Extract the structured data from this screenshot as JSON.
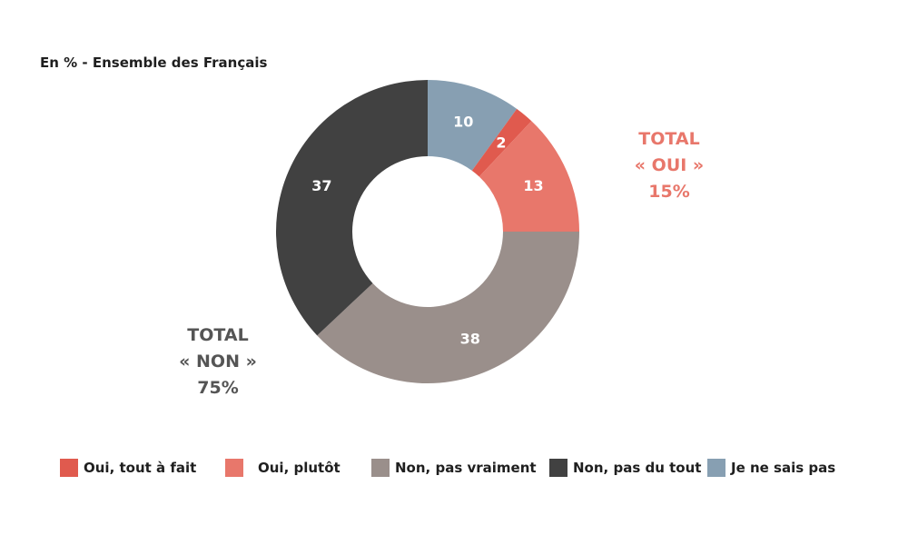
{
  "subtitle": "En % - Ensemble des Français",
  "colors": {
    "oui_tout_a_fait": "#e05a4e",
    "oui_plutot": "#e8776b",
    "non_pas_vraiment": "#9a8f8b",
    "non_pas_du_tout": "#414141",
    "je_ne_sais_pas": "#879fb2",
    "total_oui_text": "#e8776b",
    "total_non_text": "#555555"
  },
  "chart_data": {
    "type": "pie",
    "donut": true,
    "title": "En % - Ensemble des Français",
    "start": "top",
    "direction": "clockwise",
    "slices": [
      {
        "label": "Je ne sais pas",
        "value": 10,
        "color": "#879fb2"
      },
      {
        "label": "Oui, tout à fait",
        "value": 2,
        "color": "#e05a4e"
      },
      {
        "label": "Oui, plutôt",
        "value": 13,
        "color": "#e8776b"
      },
      {
        "label": "Non, pas vraiment",
        "value": 38,
        "color": "#9a8f8b"
      },
      {
        "label": "Non, pas du tout",
        "value": 37,
        "color": "#414141"
      }
    ],
    "annotations": [
      {
        "lines": [
          "TOTAL",
          "« OUI »",
          "15%"
        ]
      },
      {
        "lines": [
          "TOTAL",
          "« NON »",
          "75%"
        ]
      }
    ],
    "legend": [
      {
        "label": "Oui, tout à fait",
        "color": "#e05a4e"
      },
      {
        "label": "Oui, plutôt",
        "color": "#e8776b"
      },
      {
        "label": "Non, pas vraiment",
        "color": "#9a8f8b"
      },
      {
        "label": "Non, pas du tout",
        "color": "#414141"
      },
      {
        "label": "Je ne sais pas",
        "color": "#879fb2"
      }
    ],
    "legend_position": "bottom"
  },
  "totals": {
    "oui": {
      "line1": "TOTAL",
      "line2": "« OUI »",
      "line3": "15%"
    },
    "non": {
      "line1": "TOTAL",
      "line2": "« NON »",
      "line3": "75%"
    }
  }
}
